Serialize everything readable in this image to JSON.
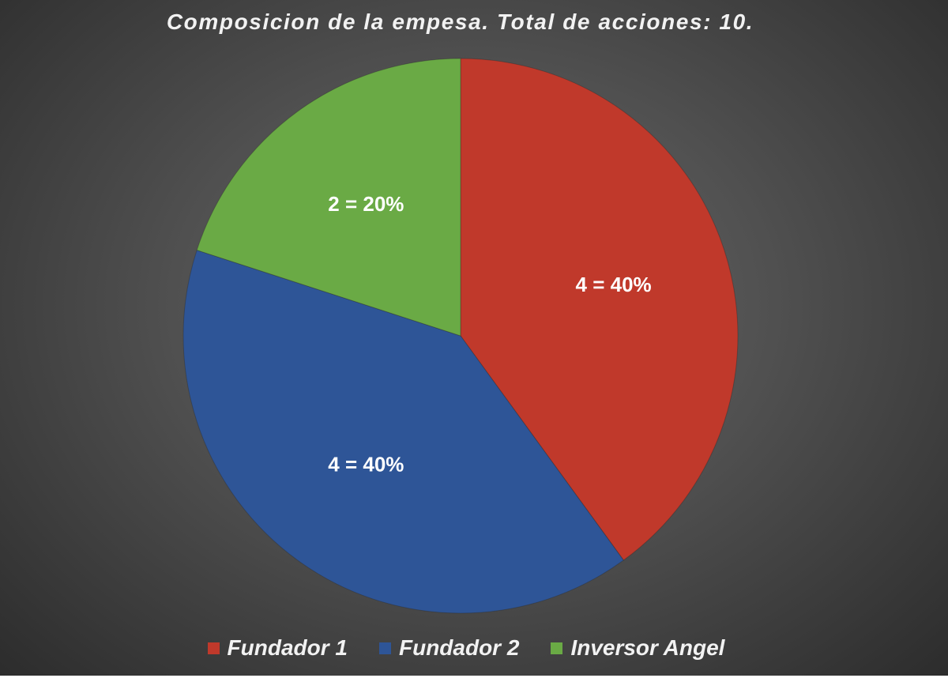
{
  "chart_data": {
    "type": "pie",
    "title": "Composicion de la empesa. Total de acciones: 10.",
    "categories": [
      "Fundador 1",
      "Fundador 2",
      "Inversor Angel"
    ],
    "values": [
      4,
      4,
      2
    ],
    "percentages": [
      40,
      40,
      20
    ],
    "data_labels": [
      "4 = 40%",
      "4 = 40%",
      "2 = 20%"
    ],
    "colors": [
      "#c0392b",
      "#2e5597",
      "#6aaa45"
    ],
    "start_angle": "12 o'clock, clockwise",
    "legend_position": "bottom"
  }
}
